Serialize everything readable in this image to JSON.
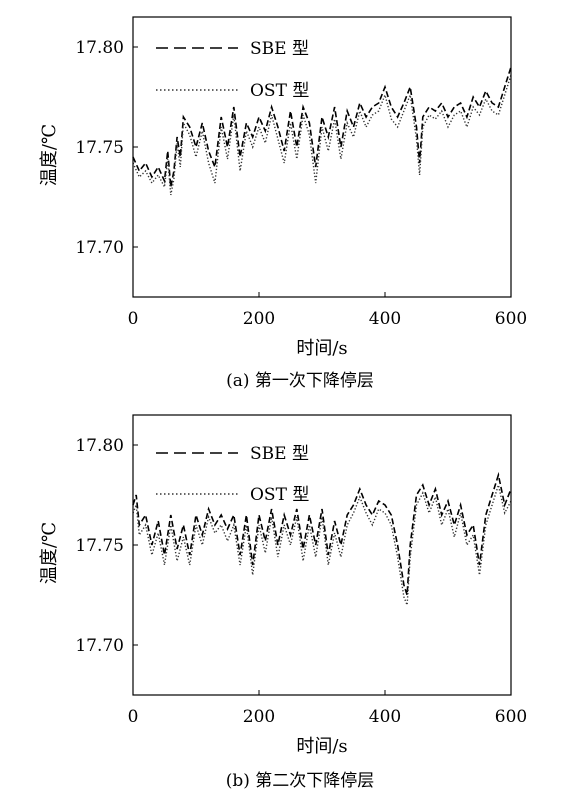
{
  "chart_data": [
    {
      "type": "line",
      "caption": "(a) 第一次下降停层",
      "xlabel": "时间/s",
      "ylabel": "温度/℃",
      "xlim": [
        0,
        600
      ],
      "ylim": [
        17.675,
        17.815
      ],
      "xticks": [
        0,
        200,
        400,
        600
      ],
      "xtick_labels": [
        "0",
        "200",
        "400",
        "600"
      ],
      "yticks": [
        17.7,
        17.75,
        17.8
      ],
      "ytick_labels": [
        "17.70",
        "17.75",
        "17.80"
      ],
      "legend_position": "top-left",
      "series": [
        {
          "name": "SBE 型",
          "style": "dashed",
          "color": "#000000",
          "x": [
            0,
            10,
            20,
            30,
            40,
            50,
            55,
            60,
            65,
            70,
            75,
            80,
            90,
            100,
            110,
            120,
            130,
            140,
            150,
            160,
            170,
            180,
            190,
            200,
            210,
            220,
            230,
            240,
            250,
            260,
            270,
            280,
            290,
            300,
            310,
            320,
            330,
            340,
            350,
            360,
            370,
            380,
            390,
            400,
            410,
            420,
            430,
            440,
            450,
            455,
            460,
            470,
            480,
            490,
            500,
            510,
            520,
            530,
            540,
            550,
            560,
            570,
            580,
            590,
            600
          ],
          "y": [
            17.745,
            17.738,
            17.742,
            17.735,
            17.74,
            17.733,
            17.748,
            17.73,
            17.738,
            17.755,
            17.745,
            17.765,
            17.76,
            17.75,
            17.762,
            17.748,
            17.74,
            17.765,
            17.75,
            17.77,
            17.745,
            17.762,
            17.755,
            17.765,
            17.758,
            17.77,
            17.76,
            17.748,
            17.768,
            17.75,
            17.77,
            17.762,
            17.74,
            17.765,
            17.755,
            17.77,
            17.75,
            17.768,
            17.76,
            17.772,
            17.765,
            17.77,
            17.772,
            17.78,
            17.77,
            17.765,
            17.772,
            17.78,
            17.76,
            17.742,
            17.765,
            17.77,
            17.768,
            17.772,
            17.765,
            17.77,
            17.772,
            17.765,
            17.775,
            17.77,
            17.778,
            17.772,
            17.77,
            17.78,
            17.79
          ]
        },
        {
          "name": "OST 型",
          "style": "dotted",
          "color": "#333333",
          "x": [
            0,
            10,
            20,
            30,
            40,
            50,
            55,
            60,
            65,
            70,
            75,
            80,
            90,
            100,
            110,
            120,
            130,
            140,
            150,
            160,
            170,
            180,
            190,
            200,
            210,
            220,
            230,
            240,
            250,
            260,
            270,
            280,
            290,
            300,
            310,
            320,
            330,
            340,
            350,
            360,
            370,
            380,
            390,
            400,
            410,
            420,
            430,
            440,
            450,
            455,
            460,
            470,
            480,
            490,
            500,
            510,
            520,
            530,
            540,
            550,
            560,
            570,
            580,
            590,
            600
          ],
          "y": [
            17.742,
            17.735,
            17.738,
            17.732,
            17.736,
            17.73,
            17.744,
            17.726,
            17.734,
            17.752,
            17.74,
            17.762,
            17.756,
            17.745,
            17.758,
            17.742,
            17.732,
            17.76,
            17.744,
            17.766,
            17.738,
            17.758,
            17.75,
            17.76,
            17.752,
            17.766,
            17.754,
            17.742,
            17.762,
            17.744,
            17.766,
            17.756,
            17.732,
            17.76,
            17.748,
            17.764,
            17.744,
            17.762,
            17.755,
            17.768,
            17.76,
            17.766,
            17.768,
            17.776,
            17.764,
            17.76,
            17.768,
            17.776,
            17.754,
            17.736,
            17.76,
            17.766,
            17.764,
            17.768,
            17.76,
            17.766,
            17.768,
            17.76,
            17.77,
            17.766,
            17.774,
            17.768,
            17.766,
            17.776,
            17.786
          ]
        }
      ]
    },
    {
      "type": "line",
      "caption": "(b) 第二次下降停层",
      "xlabel": "时间/s",
      "ylabel": "温度/℃",
      "xlim": [
        0,
        600
      ],
      "ylim": [
        17.675,
        17.815
      ],
      "xticks": [
        0,
        200,
        400,
        600
      ],
      "xtick_labels": [
        "0",
        "200",
        "400",
        "600"
      ],
      "yticks": [
        17.7,
        17.75,
        17.8
      ],
      "ytick_labels": [
        "17.70",
        "17.75",
        "17.80"
      ],
      "legend_position": "top-left",
      "series": [
        {
          "name": "SBE 型",
          "style": "dashed",
          "color": "#000000",
          "x": [
            0,
            5,
            10,
            20,
            30,
            40,
            50,
            60,
            70,
            80,
            90,
            100,
            110,
            120,
            130,
            140,
            150,
            160,
            170,
            180,
            190,
            200,
            210,
            220,
            230,
            240,
            250,
            260,
            270,
            280,
            290,
            300,
            310,
            320,
            330,
            340,
            350,
            360,
            370,
            380,
            390,
            400,
            410,
            420,
            430,
            435,
            440,
            450,
            460,
            470,
            480,
            490,
            500,
            510,
            520,
            530,
            540,
            550,
            560,
            570,
            580,
            590,
            600
          ],
          "y": [
            17.77,
            17.775,
            17.76,
            17.765,
            17.75,
            17.762,
            17.745,
            17.765,
            17.748,
            17.76,
            17.745,
            17.765,
            17.755,
            17.768,
            17.76,
            17.765,
            17.758,
            17.765,
            17.745,
            17.765,
            17.74,
            17.765,
            17.752,
            17.768,
            17.75,
            17.765,
            17.755,
            17.768,
            17.748,
            17.765,
            17.75,
            17.768,
            17.745,
            17.762,
            17.75,
            17.765,
            17.77,
            17.778,
            17.77,
            17.765,
            17.772,
            17.77,
            17.765,
            17.75,
            17.73,
            17.725,
            17.75,
            17.775,
            17.78,
            17.77,
            17.778,
            17.765,
            17.772,
            17.76,
            17.77,
            17.755,
            17.76,
            17.74,
            17.765,
            17.775,
            17.785,
            17.77,
            17.778
          ]
        },
        {
          "name": "OST 型",
          "style": "dotted",
          "color": "#333333",
          "x": [
            0,
            5,
            10,
            20,
            30,
            40,
            50,
            60,
            70,
            80,
            90,
            100,
            110,
            120,
            130,
            140,
            150,
            160,
            170,
            180,
            190,
            200,
            210,
            220,
            230,
            240,
            250,
            260,
            270,
            280,
            290,
            300,
            310,
            320,
            330,
            340,
            350,
            360,
            370,
            380,
            390,
            400,
            410,
            420,
            430,
            435,
            440,
            450,
            460,
            470,
            480,
            490,
            500,
            510,
            520,
            530,
            540,
            550,
            560,
            570,
            580,
            590,
            600
          ],
          "y": [
            17.766,
            17.77,
            17.755,
            17.76,
            17.745,
            17.756,
            17.74,
            17.76,
            17.742,
            17.754,
            17.74,
            17.76,
            17.75,
            17.764,
            17.756,
            17.76,
            17.752,
            17.76,
            17.74,
            17.76,
            17.735,
            17.76,
            17.746,
            17.764,
            17.744,
            17.76,
            17.75,
            17.764,
            17.742,
            17.76,
            17.744,
            17.764,
            17.74,
            17.756,
            17.744,
            17.76,
            17.766,
            17.774,
            17.766,
            17.76,
            17.768,
            17.766,
            17.76,
            17.744,
            17.724,
            17.72,
            17.744,
            17.77,
            17.776,
            17.766,
            17.774,
            17.76,
            17.768,
            17.754,
            17.766,
            17.75,
            17.755,
            17.735,
            17.76,
            17.77,
            17.78,
            17.766,
            17.772
          ]
        }
      ]
    }
  ]
}
